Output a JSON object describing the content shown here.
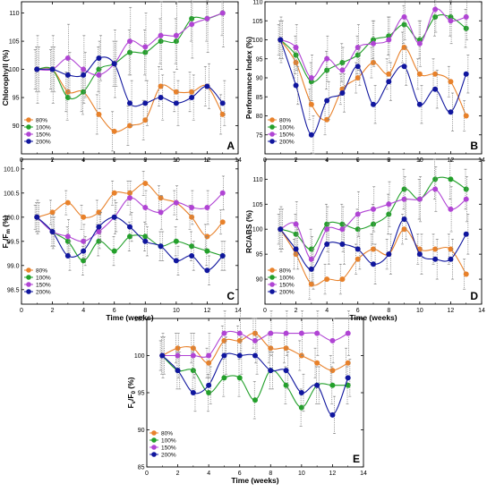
{
  "colors": {
    "s80": "#E8812A",
    "s100": "#23A02B",
    "s150": "#B044D4",
    "s200": "#10169E"
  },
  "series_names": [
    "80%",
    "100%",
    "150%",
    "200%"
  ],
  "chart_data": [
    {
      "panel": "A",
      "type": "scatter",
      "xlabel": "",
      "ylabel": "Chlorophyll (%)",
      "xlim": [
        0,
        14
      ],
      "ylim": [
        85,
        112
      ],
      "xticks": [
        "0",
        "2",
        "4",
        "6",
        "8",
        "10",
        "12",
        "14"
      ],
      "yticks": [
        "90",
        "95",
        "100",
        "105",
        "110"
      ],
      "x": [
        1,
        2,
        3,
        4,
        5,
        6,
        7,
        8,
        9,
        10,
        11,
        12,
        13
      ],
      "series": [
        {
          "name": "80%",
          "values": [
            100,
            100,
            96,
            96,
            92,
            89,
            90,
            91,
            97,
            96,
            96,
            97,
            92
          ]
        },
        {
          "name": "100%",
          "values": [
            100,
            100,
            95,
            96,
            100,
            101,
            103,
            103,
            105,
            105,
            109,
            109,
            110
          ]
        },
        {
          "name": "150%",
          "values": [
            100,
            100,
            102,
            100,
            99,
            101,
            105,
            104,
            106,
            106,
            108,
            109,
            110
          ]
        },
        {
          "name": "200%",
          "values": [
            100,
            100,
            99,
            99,
            102,
            101,
            94,
            94,
            95,
            94,
            95,
            97,
            94
          ]
        }
      ]
    },
    {
      "panel": "B",
      "type": "scatter",
      "xlabel": "",
      "ylabel": "Performance Index (%)",
      "xlim": [
        0,
        14
      ],
      "ylim": [
        70,
        110
      ],
      "xticks": [
        "0",
        "2",
        "4",
        "6",
        "8",
        "10",
        "12",
        "14"
      ],
      "yticks": [
        "75",
        "80",
        "85",
        "90",
        "95",
        "100",
        "105",
        "110"
      ],
      "x": [
        1,
        2,
        3,
        4,
        5,
        6,
        7,
        8,
        9,
        10,
        11,
        12,
        13
      ],
      "series": [
        {
          "name": "80%",
          "values": [
            100,
            94,
            83,
            79,
            87,
            90,
            94,
            91,
            98,
            91,
            91,
            89,
            80
          ]
        },
        {
          "name": "100%",
          "values": [
            100,
            96,
            89,
            92,
            94,
            96,
            100,
            101,
            104,
            100,
            106,
            106,
            103
          ]
        },
        {
          "name": "150%",
          "values": [
            100,
            98,
            90,
            95,
            92,
            98,
            99,
            100,
            106,
            99,
            108,
            105,
            106
          ]
        },
        {
          "name": "200%",
          "values": [
            100,
            88,
            75,
            84,
            86,
            93,
            83,
            89,
            93,
            83,
            87,
            81,
            91
          ]
        }
      ]
    },
    {
      "panel": "C",
      "type": "scatter",
      "xlabel": "Time (weeks)",
      "ylabel": "Fv/Fm (%)",
      "xlim": [
        0,
        14
      ],
      "ylim": [
        98.2,
        101.2
      ],
      "xticks": [
        "0",
        "2",
        "4",
        "6",
        "8",
        "10",
        "12",
        "14"
      ],
      "yticks": [
        "98.5",
        "99.0",
        "99.5",
        "100.0",
        "100.5",
        "101.0"
      ],
      "x": [
        1,
        2,
        3,
        4,
        5,
        6,
        7,
        8,
        9,
        10,
        11,
        12,
        13
      ],
      "series": [
        {
          "name": "80%",
          "values": [
            100,
            100.1,
            100.3,
            100,
            100.1,
            100.5,
            100.5,
            100.7,
            100.4,
            100.3,
            100,
            99.6,
            99.9
          ]
        },
        {
          "name": "100%",
          "values": [
            100,
            99.7,
            99.5,
            99.1,
            99.5,
            99.3,
            99.6,
            99.6,
            99.4,
            99.5,
            99.4,
            99.3,
            99.2
          ]
        },
        {
          "name": "150%",
          "values": [
            100,
            99.7,
            99.6,
            99.5,
            99.7,
            100,
            100.4,
            100.2,
            100.1,
            100.3,
            100.2,
            100.2,
            100.5
          ]
        },
        {
          "name": "200%",
          "values": [
            100,
            99.7,
            99.2,
            99.3,
            99.8,
            100,
            99.8,
            99.5,
            99.4,
            99.1,
            99.2,
            98.9,
            99.2
          ]
        }
      ]
    },
    {
      "panel": "D",
      "type": "scatter",
      "xlabel": "Time (weeks)",
      "ylabel": "RC/ABS (%)",
      "xlim": [
        0,
        14
      ],
      "ylim": [
        85,
        114
      ],
      "xticks": [
        "0",
        "2",
        "4",
        "6",
        "8",
        "10",
        "12",
        "14"
      ],
      "yticks": [
        "90",
        "95",
        "100",
        "105",
        "110"
      ],
      "x": [
        1,
        2,
        3,
        4,
        5,
        6,
        7,
        8,
        9,
        10,
        11,
        12,
        13
      ],
      "series": [
        {
          "name": "80%",
          "values": [
            100,
            95,
            89,
            90,
            90,
            94,
            96,
            95,
            100,
            96,
            96,
            96,
            91
          ]
        },
        {
          "name": "100%",
          "values": [
            100,
            99,
            96,
            101,
            101,
            100,
            101,
            103,
            108,
            106,
            110,
            110,
            108
          ]
        },
        {
          "name": "150%",
          "values": [
            100,
            101,
            94,
            100,
            100,
            103,
            104,
            105,
            106,
            106,
            108,
            104,
            106
          ]
        },
        {
          "name": "200%",
          "values": [
            100,
            96,
            92,
            97,
            97,
            96,
            93,
            95,
            102,
            95,
            94,
            94,
            99
          ]
        }
      ]
    },
    {
      "panel": "E",
      "type": "scatter",
      "xlabel": "Time (weeks)",
      "ylabel": "Fv/F0 (%)",
      "xlim": [
        0,
        14
      ],
      "ylim": [
        85,
        105
      ],
      "xticks": [
        "0",
        "2",
        "4",
        "6",
        "8",
        "10",
        "12",
        "14"
      ],
      "yticks": [
        "85",
        "90",
        "95",
        "100",
        "105"
      ],
      "x": [
        1,
        2,
        3,
        4,
        5,
        6,
        7,
        8,
        9,
        10,
        11,
        12,
        13
      ],
      "series": [
        {
          "name": "80%",
          "values": [
            100,
            101,
            101,
            99,
            102,
            102,
            103,
            101,
            101,
            100,
            99,
            98,
            99
          ]
        },
        {
          "name": "100%",
          "values": [
            100,
            98,
            98,
            95,
            97,
            97,
            94,
            98,
            96,
            93,
            96,
            96,
            96
          ]
        },
        {
          "name": "150%",
          "values": [
            100,
            100,
            100,
            100,
            103,
            103,
            102,
            103,
            103,
            103,
            103,
            102,
            103
          ]
        },
        {
          "name": "200%",
          "values": [
            100,
            98,
            95,
            96,
            100,
            100,
            100,
            98,
            98,
            95,
            96,
            92,
            97
          ]
        }
      ]
    }
  ]
}
